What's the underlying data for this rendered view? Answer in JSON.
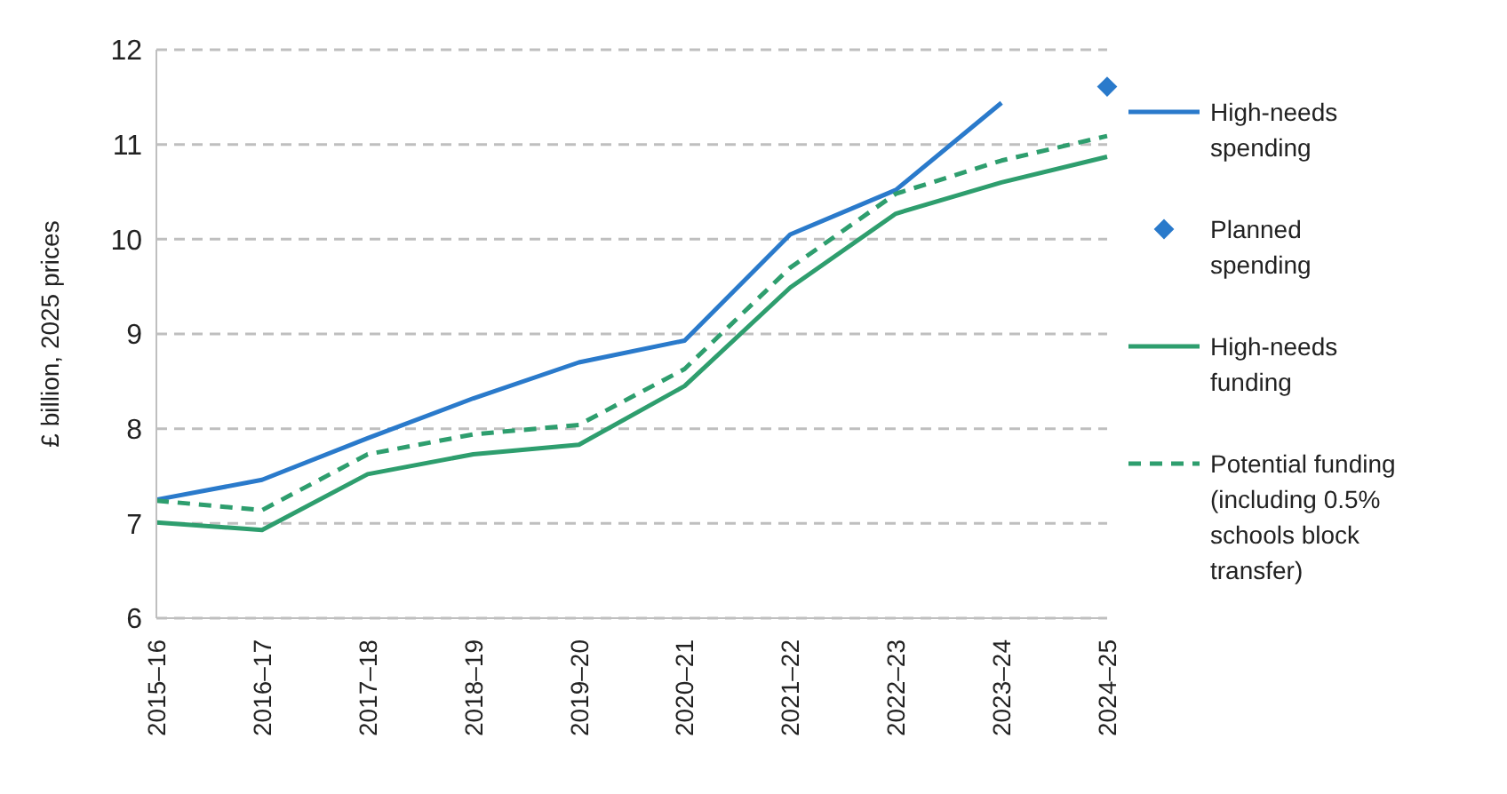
{
  "chart_data": {
    "type": "line",
    "ylabel": "£ billion, 2025 prices",
    "categories": [
      "2015–16",
      "2016–17",
      "2017–18",
      "2018–19",
      "2019–20",
      "2020–21",
      "2021–22",
      "2022–23",
      "2023–24",
      "2024–25"
    ],
    "series": [
      {
        "name": "High-needs spending",
        "color": "#2a7acb",
        "line_style": "solid",
        "marker": "none",
        "values": [
          7.25,
          7.46,
          7.9,
          8.32,
          8.7,
          8.93,
          10.05,
          10.52,
          11.44,
          null
        ]
      },
      {
        "name": "Planned spending",
        "type": "scatter",
        "color": "#2a7acb",
        "marker": "diamond",
        "values": [
          null,
          null,
          null,
          null,
          null,
          null,
          null,
          null,
          null,
          11.61
        ]
      },
      {
        "name": "High-needs funding",
        "color": "#2e9e6e",
        "line_style": "solid",
        "marker": "none",
        "values": [
          7.01,
          6.93,
          7.52,
          7.73,
          7.83,
          8.45,
          9.49,
          10.27,
          10.6,
          10.87
        ]
      },
      {
        "name": "Potential funding (including 0.5% schools block transfer)",
        "color": "#2e9e6e",
        "line_style": "dashed",
        "marker": "none",
        "values": [
          7.24,
          7.14,
          7.73,
          7.94,
          8.04,
          8.63,
          9.7,
          10.48,
          10.83,
          11.09
        ]
      }
    ],
    "ylim": [
      6,
      12
    ],
    "yticks": [
      6,
      7,
      8,
      9,
      10,
      11,
      12
    ],
    "grid": "y",
    "legend": "right"
  }
}
